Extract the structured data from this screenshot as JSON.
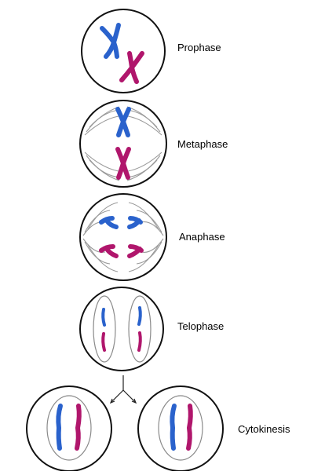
{
  "labels": {
    "prophase": "Prophase",
    "metaphase": "Metaphase",
    "anaphase": "Anaphase",
    "telophase": "Telophase",
    "cytokinesis": "Cytokinesis"
  },
  "colors": {
    "maternal_chromosome": "#2a62cc",
    "paternal_chromosome": "#b0166c",
    "cell_membrane": "#111111",
    "spindle_fibers": "#9a9a9a",
    "nuclear_envelope": "#8a8a8a"
  }
}
